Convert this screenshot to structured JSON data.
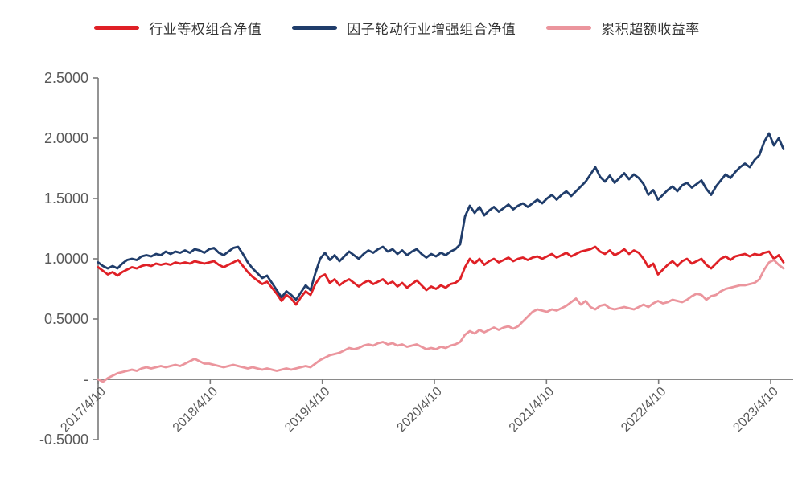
{
  "chart_data": {
    "type": "line",
    "title": "",
    "legend_position": "top",
    "grid": false,
    "background": "#ffffff",
    "axis_color": "#7a7a7a",
    "label_color": "#595959",
    "ylim": [
      -0.5,
      2.5
    ],
    "y_ticks": [
      2.5,
      2.0,
      1.5,
      1.0,
      0.5,
      0.0,
      -0.5
    ],
    "y_tick_labels": [
      "2.5000",
      "2.0000",
      "1.5000",
      "1.0000",
      "0.5000",
      "-",
      "-0.5000"
    ],
    "x_tick_labels": [
      "2017/4/10",
      "2018/4/10",
      "2019/4/10",
      "2020/4/10",
      "2021/4/10",
      "2022/4/10",
      "2023/4/10"
    ],
    "x_start_label": "2017/4/10",
    "x_end_label": "2023/4/10",
    "series": [
      {
        "name": "行业等权组合净值",
        "color": "#df2026",
        "values": [
          0.93,
          0.9,
          0.87,
          0.89,
          0.86,
          0.89,
          0.91,
          0.93,
          0.92,
          0.94,
          0.95,
          0.94,
          0.96,
          0.95,
          0.96,
          0.95,
          0.97,
          0.96,
          0.97,
          0.96,
          0.98,
          0.97,
          0.96,
          0.97,
          0.98,
          0.95,
          0.93,
          0.95,
          0.97,
          0.99,
          0.94,
          0.89,
          0.85,
          0.82,
          0.79,
          0.81,
          0.76,
          0.71,
          0.65,
          0.7,
          0.67,
          0.62,
          0.68,
          0.73,
          0.7,
          0.79,
          0.85,
          0.87,
          0.8,
          0.83,
          0.78,
          0.81,
          0.83,
          0.8,
          0.77,
          0.8,
          0.82,
          0.79,
          0.81,
          0.83,
          0.79,
          0.81,
          0.77,
          0.8,
          0.76,
          0.79,
          0.82,
          0.78,
          0.74,
          0.77,
          0.75,
          0.78,
          0.76,
          0.79,
          0.8,
          0.83,
          0.93,
          1.0,
          0.96,
          1.0,
          0.95,
          0.98,
          1.0,
          0.97,
          0.99,
          1.01,
          0.98,
          1.0,
          1.01,
          0.99,
          1.01,
          1.02,
          1.0,
          1.02,
          1.04,
          1.01,
          1.03,
          1.05,
          1.02,
          1.04,
          1.06,
          1.07,
          1.08,
          1.1,
          1.06,
          1.04,
          1.07,
          1.03,
          1.05,
          1.08,
          1.04,
          1.07,
          1.05,
          1.0,
          0.93,
          0.96,
          0.87,
          0.91,
          0.95,
          0.98,
          0.94,
          0.98,
          1.0,
          0.96,
          0.98,
          1.0,
          0.95,
          0.92,
          0.96,
          1.0,
          1.02,
          0.99,
          1.02,
          1.03,
          1.04,
          1.02,
          1.04,
          1.03,
          1.05,
          1.06,
          1.0,
          1.03,
          0.97
        ]
      },
      {
        "name": "因子轮动行业增强组合净值",
        "color": "#203d6b",
        "values": [
          0.97,
          0.94,
          0.92,
          0.94,
          0.92,
          0.96,
          0.99,
          1.0,
          0.99,
          1.02,
          1.03,
          1.02,
          1.04,
          1.03,
          1.06,
          1.04,
          1.06,
          1.05,
          1.07,
          1.05,
          1.08,
          1.07,
          1.05,
          1.08,
          1.09,
          1.05,
          1.03,
          1.06,
          1.09,
          1.1,
          1.04,
          0.97,
          0.92,
          0.88,
          0.84,
          0.86,
          0.8,
          0.74,
          0.68,
          0.73,
          0.7,
          0.66,
          0.72,
          0.78,
          0.74,
          0.88,
          1.0,
          1.05,
          0.99,
          1.03,
          0.98,
          1.02,
          1.06,
          1.03,
          1.0,
          1.04,
          1.07,
          1.05,
          1.08,
          1.1,
          1.06,
          1.08,
          1.04,
          1.07,
          1.03,
          1.06,
          1.08,
          1.04,
          1.01,
          1.04,
          1.02,
          1.05,
          1.03,
          1.06,
          1.08,
          1.12,
          1.35,
          1.44,
          1.38,
          1.43,
          1.36,
          1.4,
          1.43,
          1.39,
          1.42,
          1.45,
          1.41,
          1.44,
          1.46,
          1.43,
          1.46,
          1.49,
          1.46,
          1.5,
          1.53,
          1.49,
          1.53,
          1.56,
          1.52,
          1.56,
          1.6,
          1.64,
          1.7,
          1.76,
          1.68,
          1.64,
          1.69,
          1.63,
          1.67,
          1.71,
          1.66,
          1.7,
          1.67,
          1.62,
          1.53,
          1.57,
          1.49,
          1.53,
          1.57,
          1.6,
          1.56,
          1.61,
          1.63,
          1.59,
          1.62,
          1.65,
          1.58,
          1.53,
          1.6,
          1.65,
          1.7,
          1.67,
          1.72,
          1.76,
          1.79,
          1.76,
          1.82,
          1.86,
          1.97,
          2.04,
          1.94,
          2.0,
          1.91
        ]
      },
      {
        "name": "累积超额收益率",
        "color": "#eb959d",
        "values": [
          0.0,
          -0.02,
          0.01,
          0.03,
          0.05,
          0.06,
          0.07,
          0.08,
          0.07,
          0.09,
          0.1,
          0.09,
          0.1,
          0.11,
          0.1,
          0.11,
          0.12,
          0.11,
          0.13,
          0.15,
          0.17,
          0.15,
          0.13,
          0.13,
          0.12,
          0.11,
          0.1,
          0.11,
          0.12,
          0.11,
          0.1,
          0.09,
          0.1,
          0.09,
          0.08,
          0.09,
          0.08,
          0.07,
          0.08,
          0.09,
          0.08,
          0.09,
          0.1,
          0.11,
          0.1,
          0.13,
          0.16,
          0.18,
          0.2,
          0.21,
          0.22,
          0.24,
          0.26,
          0.25,
          0.26,
          0.28,
          0.29,
          0.28,
          0.3,
          0.31,
          0.29,
          0.3,
          0.28,
          0.29,
          0.27,
          0.28,
          0.29,
          0.27,
          0.25,
          0.26,
          0.25,
          0.27,
          0.26,
          0.28,
          0.29,
          0.31,
          0.37,
          0.4,
          0.38,
          0.41,
          0.39,
          0.41,
          0.43,
          0.41,
          0.43,
          0.44,
          0.42,
          0.44,
          0.48,
          0.52,
          0.56,
          0.58,
          0.57,
          0.56,
          0.58,
          0.57,
          0.59,
          0.61,
          0.64,
          0.67,
          0.62,
          0.65,
          0.6,
          0.58,
          0.61,
          0.62,
          0.59,
          0.58,
          0.59,
          0.6,
          0.59,
          0.58,
          0.6,
          0.62,
          0.6,
          0.63,
          0.65,
          0.63,
          0.64,
          0.66,
          0.65,
          0.64,
          0.66,
          0.69,
          0.71,
          0.7,
          0.66,
          0.69,
          0.7,
          0.73,
          0.75,
          0.76,
          0.77,
          0.78,
          0.78,
          0.79,
          0.8,
          0.83,
          0.91,
          0.97,
          0.99,
          0.95,
          0.92
        ]
      }
    ]
  }
}
